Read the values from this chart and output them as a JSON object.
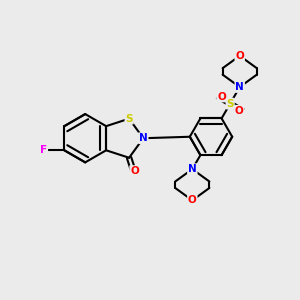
{
  "background_color": "#ebebeb",
  "bond_color": "#000000",
  "atom_colors": {
    "F": "#ff00ff",
    "O": "#ff0000",
    "N": "#0000ff",
    "S_iso": "#cccc00",
    "S_sulfonyl": "#cccc00",
    "C": "#000000"
  },
  "figsize": [
    3.0,
    3.0
  ],
  "dpi": 100
}
